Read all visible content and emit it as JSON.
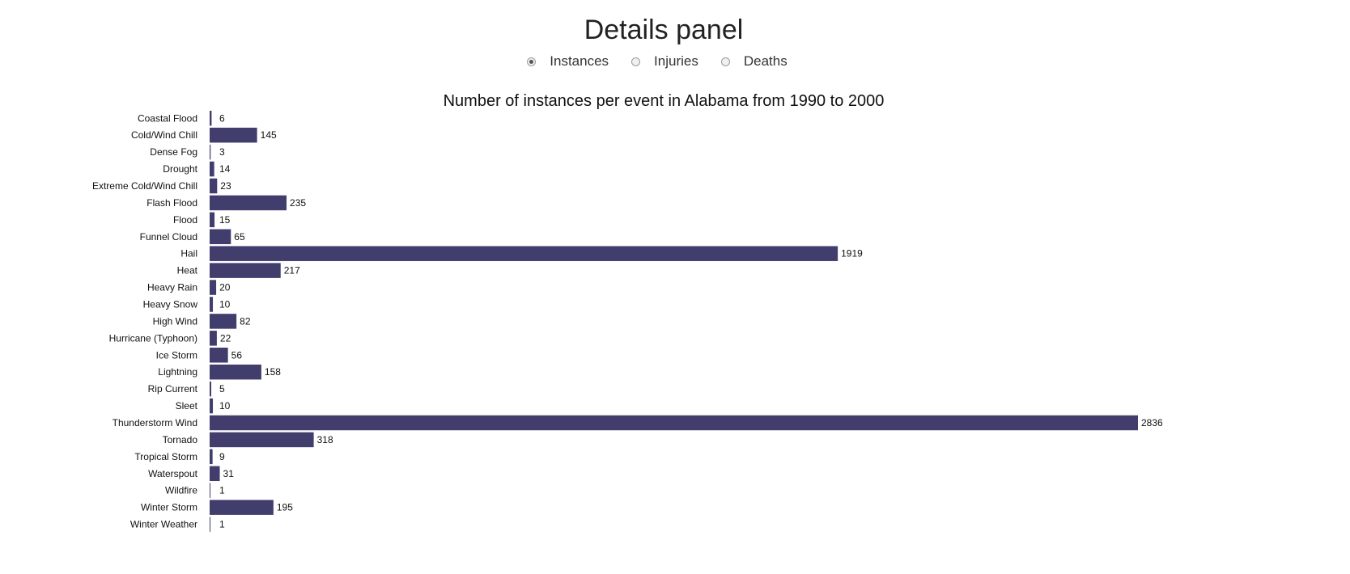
{
  "header": {
    "title": "Details panel"
  },
  "metric_selector": {
    "options": [
      {
        "label": "Instances",
        "checked": true
      },
      {
        "label": "Injuries",
        "checked": false
      },
      {
        "label": "Deaths",
        "checked": false
      }
    ]
  },
  "colors": {
    "bar": "#413e6e"
  },
  "chart_data": {
    "type": "bar",
    "orientation": "horizontal",
    "title": "Number of instances per event in Alabama from 1990 to 2000",
    "categories": [
      "Coastal Flood",
      "Cold/Wind Chill",
      "Dense Fog",
      "Drought",
      "Extreme Cold/Wind Chill",
      "Flash Flood",
      "Flood",
      "Funnel Cloud",
      "Hail",
      "Heat",
      "Heavy Rain",
      "Heavy Snow",
      "High Wind",
      "Hurricane (Typhoon)",
      "Ice Storm",
      "Lightning",
      "Rip Current",
      "Sleet",
      "Thunderstorm Wind",
      "Tornado",
      "Tropical Storm",
      "Waterspout",
      "Wildfire",
      "Winter Storm",
      "Winter Weather"
    ],
    "values": [
      6,
      145,
      3,
      14,
      23,
      235,
      15,
      65,
      1919,
      217,
      20,
      10,
      82,
      22,
      56,
      158,
      5,
      10,
      2836,
      318,
      9,
      31,
      1,
      195,
      1
    ],
    "xlim": [
      0,
      2836
    ],
    "grid": false,
    "legend": "none"
  }
}
